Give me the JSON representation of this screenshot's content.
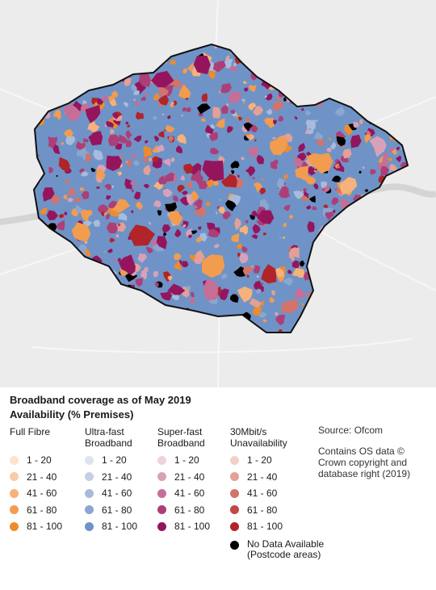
{
  "legend": {
    "title": "Broadband coverage as of May 2019",
    "subtitle": "Availability (% Premises)",
    "columns": [
      {
        "heading_line1": "Full Fibre",
        "heading_line2": "",
        "items": [
          {
            "label": "1 - 20",
            "color": "#fbe3d0"
          },
          {
            "label": "21 - 40",
            "color": "#f9cba4"
          },
          {
            "label": "41 - 60",
            "color": "#f6b27a"
          },
          {
            "label": "61 - 80",
            "color": "#f29c4f"
          },
          {
            "label": "81 - 100",
            "color": "#ee8b2d"
          }
        ]
      },
      {
        "heading_line1": "Ultra-fast",
        "heading_line2": "Broadband",
        "items": [
          {
            "label": "1 - 20",
            "color": "#dde3f1"
          },
          {
            "label": "21 - 40",
            "color": "#c4cfe6"
          },
          {
            "label": "41 - 60",
            "color": "#a8bbdc"
          },
          {
            "label": "61 - 80",
            "color": "#8aa6d1"
          },
          {
            "label": "81 - 100",
            "color": "#6f93c6"
          }
        ]
      },
      {
        "heading_line1": "Super-fast",
        "heading_line2": "Broadband",
        "items": [
          {
            "label": "1 - 20",
            "color": "#ecd3de"
          },
          {
            "label": "21 - 40",
            "color": "#d9a1b9"
          },
          {
            "label": "41 - 60",
            "color": "#c46f98"
          },
          {
            "label": "61 - 80",
            "color": "#ac3f78"
          },
          {
            "label": "81 - 100",
            "color": "#94155e"
          }
        ]
      },
      {
        "heading_line1": "30Mbit/s",
        "heading_line2": "Unavailability",
        "items": [
          {
            "label": "1 - 20",
            "color": "#f2cfc9"
          },
          {
            "label": "21 - 40",
            "color": "#e3a096"
          },
          {
            "label": "41 - 60",
            "color": "#d3736a"
          },
          {
            "label": "61 - 80",
            "color": "#c34744"
          },
          {
            "label": "81 - 100",
            "color": "#b1242a"
          }
        ]
      }
    ],
    "no_data": {
      "line1": "No Data Available",
      "line2": "(Postcode areas)",
      "color": "#000000"
    },
    "source": "Source: Ofcom",
    "credit_lines": [
      "Contains OS data ©",
      "Crown copyright and",
      "database right (2019)"
    ]
  }
}
